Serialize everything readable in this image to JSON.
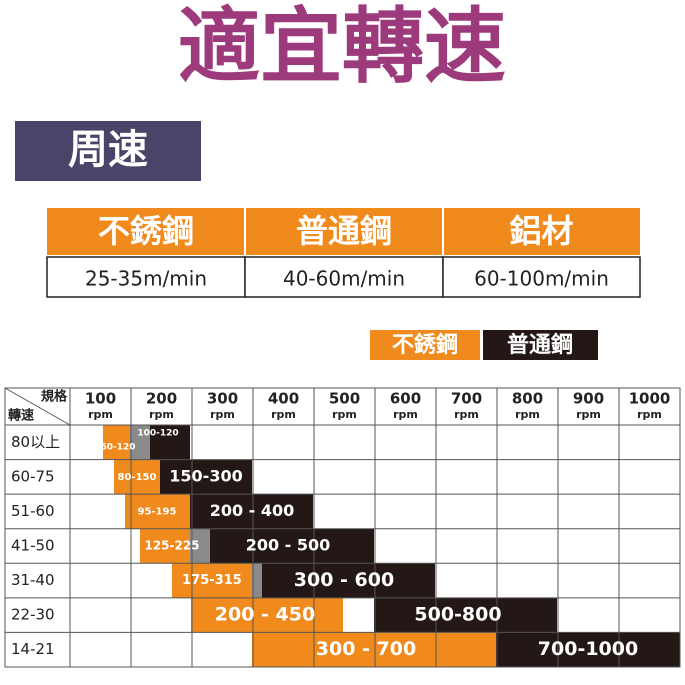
{
  "title": "適宜轉速",
  "section_label": "周速",
  "speed_table": {
    "headers": [
      "不銹鋼",
      "普通鋼",
      "鋁材"
    ],
    "values": [
      "25-35m/min",
      "40-60m/min",
      "60-100m/min"
    ]
  },
  "legend": [
    "不銹鋼",
    "普通鋼"
  ],
  "grid": {
    "corner_top": "規格",
    "corner_bottom": "轉速",
    "columns": [
      {
        "value": "100",
        "unit": "rpm"
      },
      {
        "value": "200",
        "unit": "rpm"
      },
      {
        "value": "300",
        "unit": "rpm"
      },
      {
        "value": "400",
        "unit": "rpm"
      },
      {
        "value": "500",
        "unit": "rpm"
      },
      {
        "value": "600",
        "unit": "rpm"
      },
      {
        "value": "700",
        "unit": "rpm"
      },
      {
        "value": "800",
        "unit": "rpm"
      },
      {
        "value": "900",
        "unit": "rpm"
      },
      {
        "value": "1000",
        "unit": "rpm"
      }
    ],
    "rows": [
      {
        "label": "80以上",
        "bars": [
          "60-120",
          "100-120"
        ]
      },
      {
        "label": "60-75",
        "bars": [
          "80-150",
          "150-300"
        ]
      },
      {
        "label": "51-60",
        "bars": [
          "95-195",
          "200 - 400"
        ]
      },
      {
        "label": "41-50",
        "bars": [
          "125-225",
          "200 - 500"
        ]
      },
      {
        "label": "31-40",
        "bars": [
          "175-315",
          "300 - 600"
        ]
      },
      {
        "label": "22-30",
        "bars": [
          "200 - 450",
          "500-800"
        ]
      },
      {
        "label": "14-21",
        "bars": [
          "300 - 700",
          "700-1000"
        ]
      }
    ]
  }
}
